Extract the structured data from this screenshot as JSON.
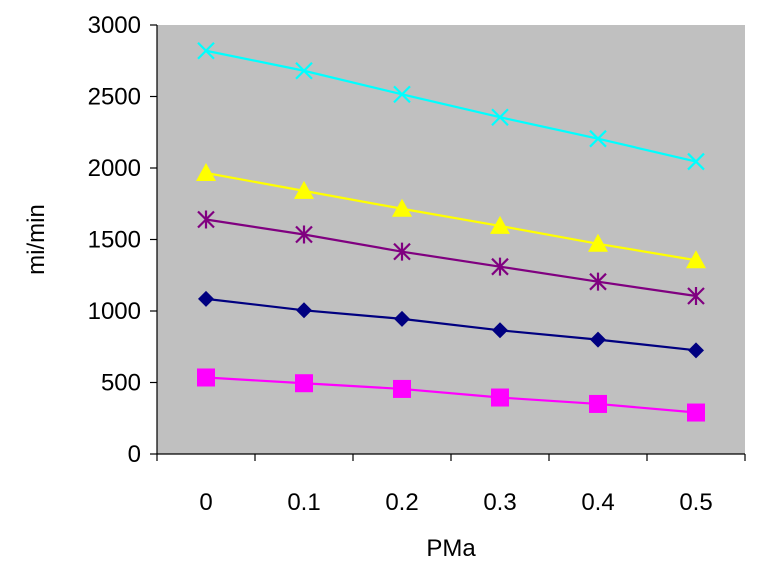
{
  "chart_data": {
    "type": "line",
    "title": "",
    "xlabel": "PMa",
    "ylabel": "mi/min",
    "x": [
      0,
      0.1,
      0.2,
      0.3,
      0.4,
      0.5
    ],
    "x_tick_labels": [
      "0",
      "0.1",
      "0.2",
      "0.3",
      "0.4",
      "0.5"
    ],
    "ylim": [
      0,
      3000
    ],
    "y_ticks": [
      0,
      500,
      1000,
      1500,
      2000,
      2500,
      3000
    ],
    "y_tick_labels": [
      "0",
      "500",
      "1000",
      "1500",
      "2000",
      "2500",
      "3000"
    ],
    "grid": false,
    "legend": "none",
    "plot_background": "#c0c0c0",
    "series": [
      {
        "color": "#000080",
        "marker": "diamond",
        "values": [
          1085,
          1005,
          945,
          865,
          800,
          725
        ]
      },
      {
        "color": "#ff00ff",
        "marker": "square",
        "values": [
          535,
          495,
          455,
          395,
          350,
          290
        ]
      },
      {
        "color": "#ffff00",
        "marker": "triangle",
        "values": [
          1965,
          1840,
          1715,
          1595,
          1470,
          1355
        ]
      },
      {
        "color": "#00ffff",
        "marker": "x",
        "values": [
          2820,
          2680,
          2515,
          2355,
          2205,
          2045
        ]
      },
      {
        "color": "#800080",
        "marker": "asterisk",
        "values": [
          1640,
          1535,
          1415,
          1310,
          1205,
          1105
        ]
      }
    ]
  }
}
